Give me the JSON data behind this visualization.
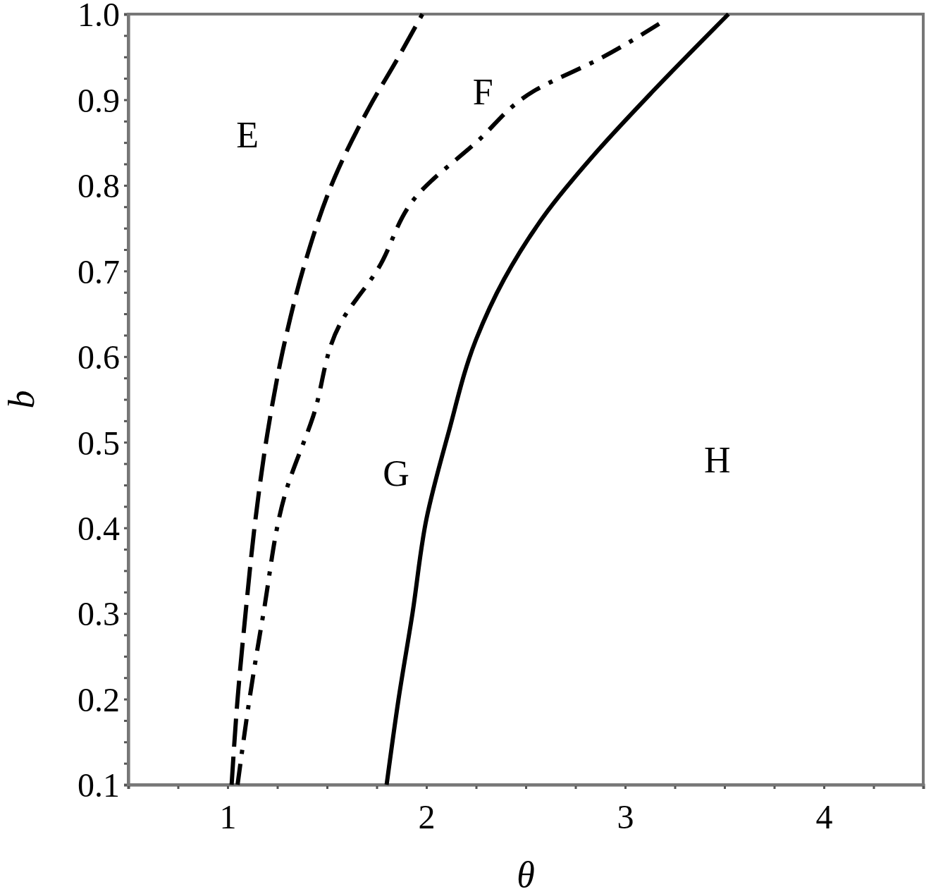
{
  "chart_data": {
    "type": "line",
    "xlabel": "θ",
    "ylabel": "b",
    "xlim": [
      0.5,
      4.5
    ],
    "ylim": [
      0.1,
      1.0
    ],
    "xticks": [
      {
        "value": 0.5,
        "label": null
      },
      {
        "value": 0.75,
        "label": null
      },
      1,
      {
        "value": 1.25,
        "label": null
      },
      {
        "value": 1.5,
        "label": null
      },
      {
        "value": 1.75,
        "label": null
      },
      2,
      {
        "value": 2.25,
        "label": null
      },
      {
        "value": 2.5,
        "label": null
      },
      {
        "value": 2.75,
        "label": null
      },
      3,
      {
        "value": 3.25,
        "label": null
      },
      {
        "value": 3.5,
        "label": null
      },
      {
        "value": 3.75,
        "label": null
      },
      4,
      {
        "value": 4.25,
        "label": null
      },
      {
        "value": 4.5,
        "label": null
      }
    ],
    "yticks": [
      0.1,
      {
        "value": 0.125,
        "label": null
      },
      {
        "value": 0.15,
        "label": null
      },
      {
        "value": 0.175,
        "label": null
      },
      0.2,
      {
        "value": 0.225,
        "label": null
      },
      {
        "value": 0.25,
        "label": null
      },
      {
        "value": 0.275,
        "label": null
      },
      0.3,
      {
        "value": 0.325,
        "label": null
      },
      {
        "value": 0.35,
        "label": null
      },
      {
        "value": 0.375,
        "label": null
      },
      0.4,
      {
        "value": 0.425,
        "label": null
      },
      {
        "value": 0.45,
        "label": null
      },
      {
        "value": 0.475,
        "label": null
      },
      0.5,
      {
        "value": 0.525,
        "label": null
      },
      {
        "value": 0.55,
        "label": null
      },
      {
        "value": 0.575,
        "label": null
      },
      0.6,
      {
        "value": 0.625,
        "label": null
      },
      {
        "value": 0.65,
        "label": null
      },
      {
        "value": 0.675,
        "label": null
      },
      0.7,
      {
        "value": 0.725,
        "label": null
      },
      {
        "value": 0.75,
        "label": null
      },
      {
        "value": 0.775,
        "label": null
      },
      0.8,
      {
        "value": 0.825,
        "label": null
      },
      {
        "value": 0.85,
        "label": null
      },
      {
        "value": 0.875,
        "label": null
      },
      0.9,
      {
        "value": 0.925,
        "label": null
      },
      {
        "value": 0.95,
        "label": null
      },
      {
        "value": 0.975,
        "label": null
      },
      {
        "value": 1.0,
        "label": "1.0"
      }
    ],
    "grid": false,
    "marker": "none",
    "series": [
      {
        "color": "#000000",
        "line_style": "dashed",
        "x": [
          1.02,
          1.05,
          1.09,
          1.14,
          1.2,
          1.29,
          1.39,
          1.54,
          1.71,
          1.86,
          1.98
        ],
        "values": [
          0.1,
          0.2,
          0.3,
          0.41,
          0.51,
          0.62,
          0.71,
          0.81,
          0.89,
          0.95,
          1.0
        ]
      },
      {
        "color": "#000000",
        "line_style": "dashdot",
        "x": [
          1.05,
          1.11,
          1.18,
          1.29,
          1.43,
          1.57,
          1.75,
          1.96,
          2.25,
          2.54,
          2.89,
          3.18
        ],
        "values": [
          0.1,
          0.2,
          0.3,
          0.44,
          0.53,
          0.64,
          0.7,
          0.79,
          0.85,
          0.91,
          0.95,
          0.99
        ]
      },
      {
        "color": "#000000",
        "line_style": "solid",
        "x": [
          1.8,
          1.86,
          1.93,
          2.0,
          2.11,
          2.25,
          2.39,
          2.61,
          2.86,
          3.14,
          3.52
        ],
        "values": [
          0.1,
          0.2,
          0.3,
          0.41,
          0.51,
          0.62,
          0.69,
          0.77,
          0.84,
          0.91,
          1.0
        ]
      }
    ],
    "annotations": [
      "E",
      "F",
      "G",
      "H"
    ]
  }
}
